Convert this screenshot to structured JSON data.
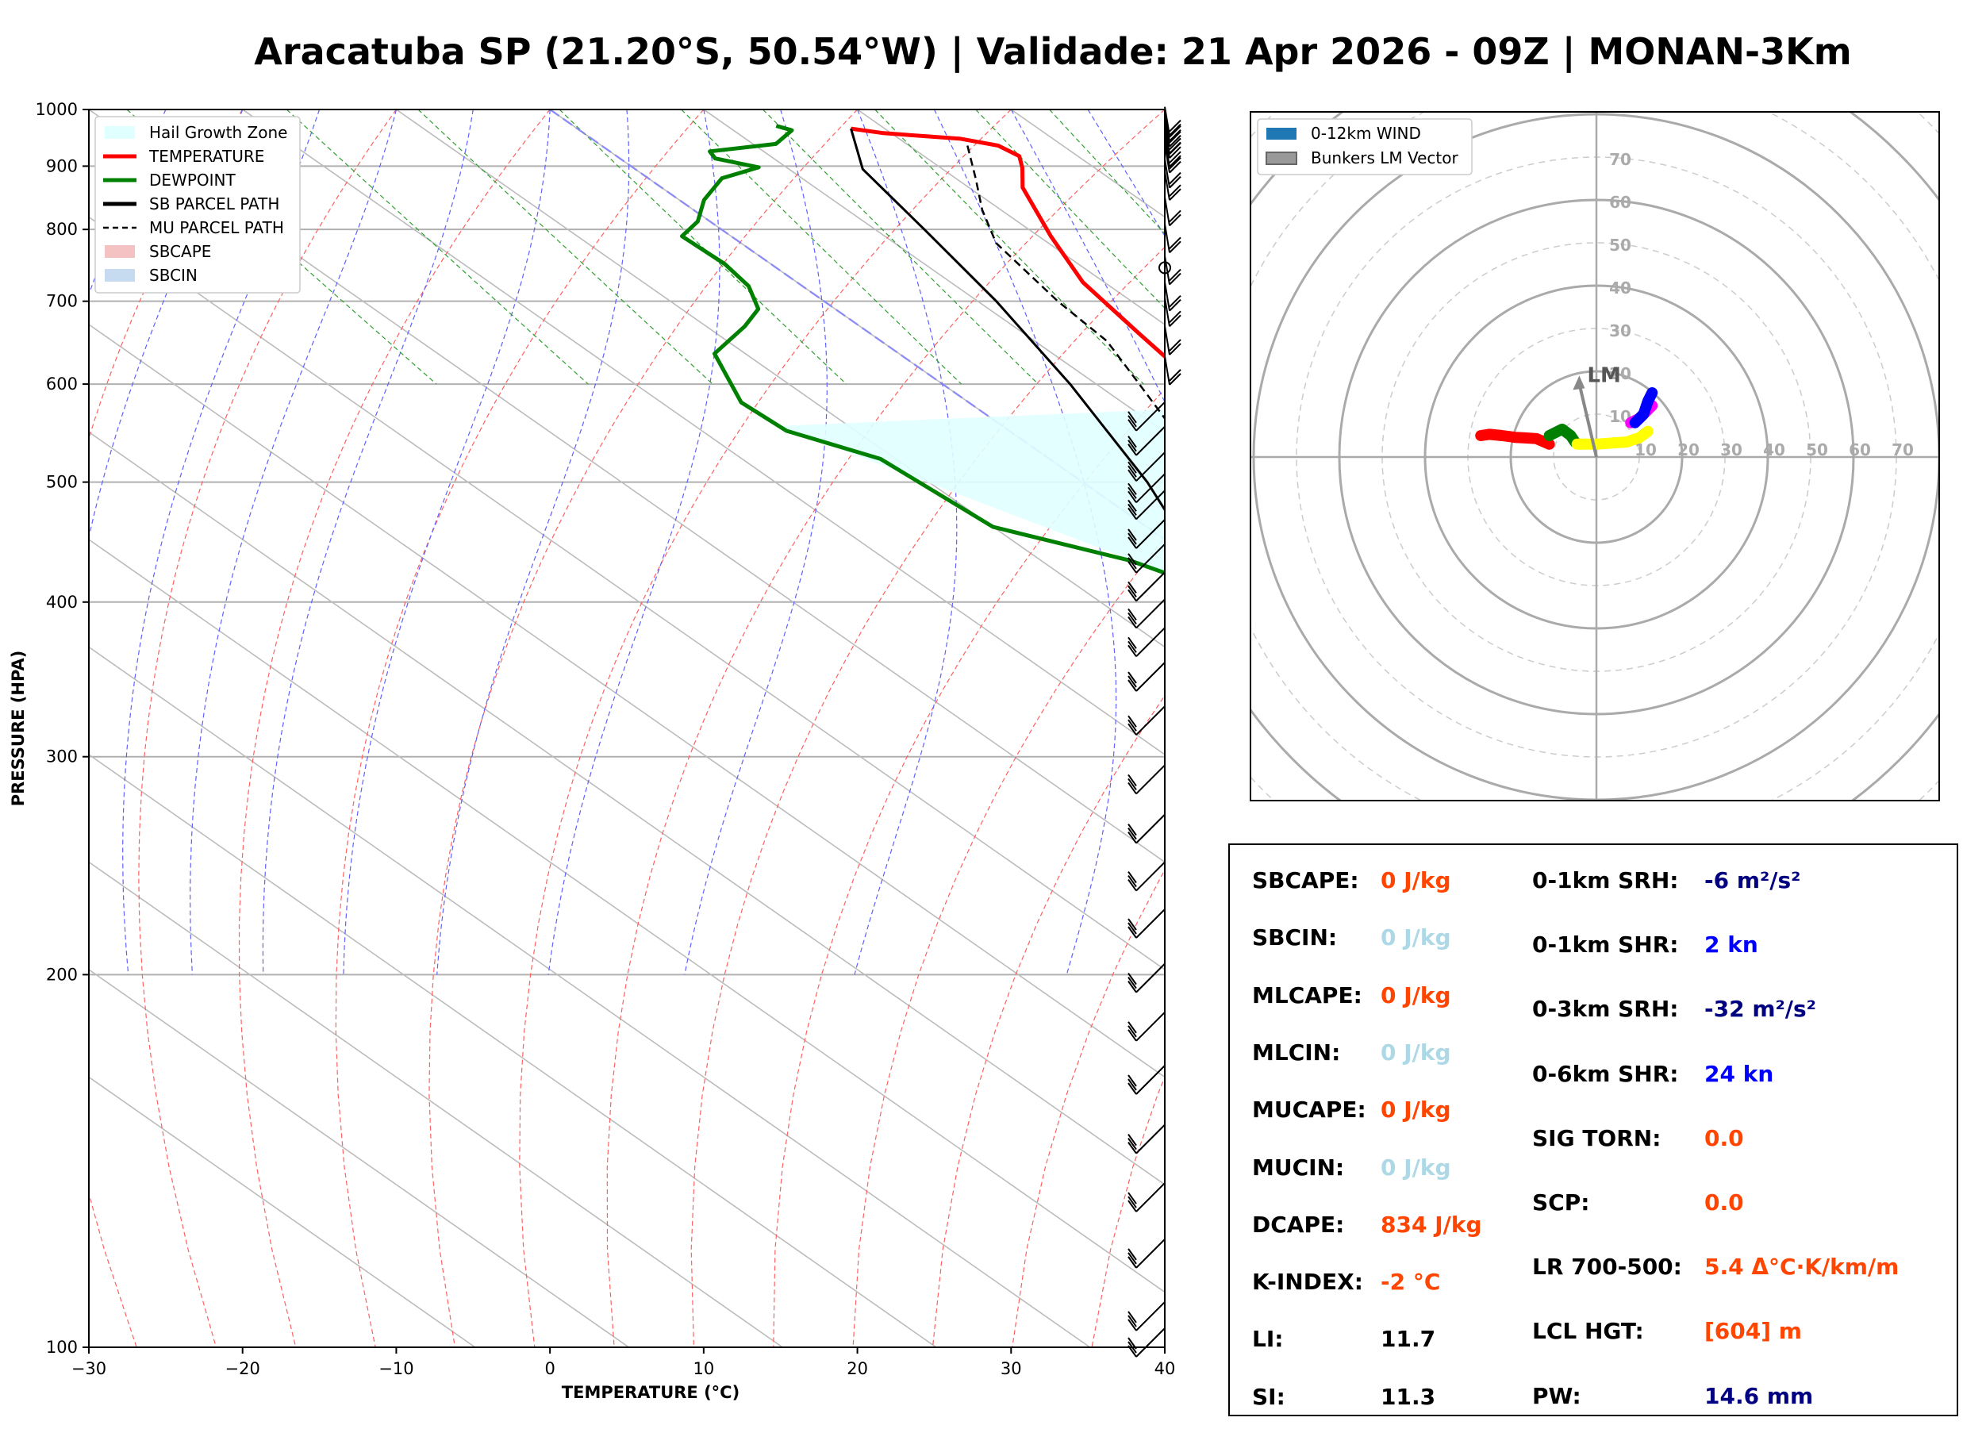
{
  "title": "Aracatuba SP (21.20°S, 50.54°W) | Validade: 21 Apr 2026 - 09Z | MONAN-3Km",
  "chart_data": [
    {
      "type": "line",
      "subtype": "skew-t log-p",
      "xlabel": "TEMPERATURE (°C)",
      "ylabel": "PRESSURE (HPA)",
      "xlim": [
        -30,
        40
      ],
      "ylim": [
        1000,
        100
      ],
      "y_scale": "log",
      "x_ticks": [
        -30,
        -20,
        -10,
        0,
        10,
        20,
        30,
        40
      ],
      "x_tick_labels": [
        "−30",
        "−20",
        "−10",
        "0",
        "10",
        "20",
        "30",
        "40"
      ],
      "y_ticks": [
        1000,
        900,
        800,
        700,
        600,
        500,
        400,
        300,
        200,
        100
      ],
      "y_tick_labels": [
        "1000",
        "900",
        "800",
        "700",
        "600",
        "500",
        "400",
        "300",
        "200",
        "100"
      ],
      "grid": true,
      "legend_position": "top-left",
      "legend": [
        {
          "label": "Hail Growth Zone",
          "color": "#e0ffff",
          "kind": "patch"
        },
        {
          "label": "TEMPERATURE",
          "color": "#ff0000",
          "kind": "line"
        },
        {
          "label": "DEWPOINT",
          "color": "#008000",
          "kind": "line"
        },
        {
          "label": "SB PARCEL PATH",
          "color": "#000000",
          "kind": "line"
        },
        {
          "label": "MU PARCEL PATH",
          "color": "#000000",
          "kind": "dashed"
        },
        {
          "label": "SBCAPE",
          "color": "#f4c2c2",
          "kind": "patch"
        },
        {
          "label": "SBCIN",
          "color": "#c6dbef",
          "kind": "patch"
        }
      ],
      "series": [
        {
          "name": "TEMPERATURE",
          "color": "#ff0000",
          "points": [
            [
              17.8,
              965
            ],
            [
              19.5,
              957
            ],
            [
              24,
              947
            ],
            [
              25.8,
              935
            ],
            [
              26.2,
              917
            ],
            [
              25.3,
              897
            ],
            [
              23.5,
              865
            ],
            [
              20.8,
              790
            ],
            [
              18.6,
              725
            ],
            [
              17.5,
              660
            ],
            [
              16.8,
              618
            ],
            [
              16.4,
              595
            ],
            [
              16.2,
              560
            ],
            [
              14.5,
              515
            ],
            [
              12.2,
              470
            ],
            [
              8.8,
              425
            ],
            [
              6.5,
              390
            ],
            [
              5.8,
              360
            ],
            [
              5.6,
              330
            ],
            [
              4.2,
              300
            ],
            [
              1.5,
              260
            ],
            [
              -1.8,
              225
            ],
            [
              -4.8,
              198
            ],
            [
              -7.4,
              180
            ],
            [
              -8,
              162
            ],
            [
              -6.5,
              142
            ],
            [
              -5.2,
              122
            ],
            [
              -2.8,
              100
            ]
          ]
        },
        {
          "name": "DEWPOINT",
          "color": "#008000",
          "points": [
            [
              13.2,
              970
            ],
            [
              13.8,
              962
            ],
            [
              11.5,
              938
            ],
            [
              6.5,
              925
            ],
            [
              6.2,
              913
            ],
            [
              8.2,
              898
            ],
            [
              4.8,
              880
            ],
            [
              1.6,
              845
            ],
            [
              -0.8,
              812
            ],
            [
              -3.2,
              790
            ],
            [
              -3,
              750
            ],
            [
              -3.5,
              720
            ],
            [
              -5,
              690
            ],
            [
              -7.5,
              668
            ],
            [
              -12,
              635
            ],
            [
              -14.8,
              580
            ],
            [
              -14.5,
              550
            ],
            [
              -11,
              522
            ],
            [
              -10,
              460
            ],
            [
              -4.2,
              432
            ],
            [
              -0.5,
              400
            ],
            [
              2.6,
              380
            ],
            [
              2.4,
              345
            ],
            [
              -0.5,
              315
            ],
            [
              -1.8,
              290
            ],
            [
              -6.6,
              255
            ],
            [
              -7.7,
              240
            ],
            [
              -11.9,
              220
            ],
            [
              -13.3,
              200
            ],
            [
              -15.9,
              175
            ],
            [
              -17.5,
              155
            ],
            [
              -15,
              120
            ],
            [
              -16.8,
              100
            ]
          ]
        },
        {
          "name": "SB PARCEL PATH",
          "color": "#000000",
          "points": [
            [
              17.8,
              965
            ],
            [
              14.8,
              895
            ],
            [
              13.2,
              800
            ],
            [
              11.2,
              700
            ],
            [
              8.3,
              600
            ],
            [
              4.2,
              500
            ],
            [
              -2,
              400
            ],
            [
              -9,
              300
            ],
            [
              -18.8,
              200
            ],
            [
              -24.5,
              150
            ],
            [
              -28.5,
              100
            ]
          ]
        },
        {
          "name": "MU PARCEL PATH",
          "color": "#000000",
          "dash": true,
          "points": [
            [
              23.8,
              935
            ],
            [
              21.3,
              880
            ],
            [
              18.8,
              830
            ],
            [
              16.6,
              780
            ],
            [
              15.2,
              700
            ],
            [
              14.7,
              650
            ],
            [
              12.8,
              600
            ],
            [
              9.6,
              525
            ],
            [
              6.5,
              460
            ],
            [
              2.2,
              400
            ],
            [
              -4.8,
              300
            ],
            [
              -14,
              200
            ],
            [
              -20.8,
              150
            ],
            [
              -27.5,
              100
            ]
          ]
        }
      ],
      "hail_growth_zone": {
        "color": "#e0ffff",
        "points": [
          [
            -14.5,
            555
          ],
          [
            -0.8,
            400
          ],
          [
            5.5,
            385
          ],
          [
            8.5,
            425
          ],
          [
            13.2,
            475
          ],
          [
            16.2,
            560
          ],
          [
            16.2,
            575
          ]
        ]
      },
      "wind_barbs_pressure": [
        970,
        960,
        950,
        938,
        930,
        915,
        905,
        880,
        860,
        820,
        780,
        735,
        700,
        680,
        645,
        610,
        560,
        535,
        510,
        490,
        475,
        450,
        430,
        408,
        388,
        368,
        345,
        318,
        285,
        260,
        238,
        218,
        197,
        180,
        163,
        146,
        131,
        118,
        105,
        100
      ]
    },
    {
      "type": "scatter",
      "subtype": "hodograph",
      "xlim": [
        -70,
        70
      ],
      "ylim": [
        -70,
        70
      ],
      "ring_labels": [
        "10",
        "20",
        "30",
        "40",
        "50",
        "60",
        "70"
      ],
      "legend_position": "top-left",
      "legend": [
        {
          "label": "0-12km WIND",
          "color": "#1f77b4"
        },
        {
          "label": "Bunkers LM Vector",
          "color": "#999999"
        }
      ],
      "lm_label": "LM",
      "lm_vector": [
        -4,
        19
      ],
      "series": [
        {
          "name": "",
          "color": "#ff0000",
          "points": [
            [
              -27,
              5
            ],
            [
              -25,
              5.3
            ],
            [
              -22,
              5
            ],
            [
              -19,
              4.6
            ],
            [
              -17,
              4.5
            ],
            [
              -14,
              4.3
            ],
            [
              -11,
              3
            ]
          ]
        },
        {
          "name": "",
          "color": "#008000",
          "points": [
            [
              -11,
              5
            ],
            [
              -8,
              6.5
            ],
            [
              -6,
              5
            ],
            [
              -5,
              3.5
            ]
          ]
        },
        {
          "name": "",
          "color": "#ffff00",
          "points": [
            [
              -4.5,
              3
            ],
            [
              0,
              3
            ],
            [
              4,
              3.3
            ],
            [
              7,
              3.5
            ],
            [
              10,
              4.5
            ],
            [
              12,
              6
            ]
          ]
        },
        {
          "name": "",
          "color": "#ff00ff",
          "points": [
            [
              8,
              8
            ],
            [
              10,
              9
            ],
            [
              11,
              10
            ],
            [
              13,
              12
            ]
          ]
        },
        {
          "name": "",
          "color": "#0000ff",
          "points": [
            [
              9,
              8
            ],
            [
              11,
              10
            ],
            [
              12,
              13
            ],
            [
              13,
              15
            ]
          ]
        }
      ]
    }
  ],
  "indices": [
    {
      "label": "SBCAPE:",
      "value": "0 J/kg",
      "color": "#ff4500"
    },
    {
      "label": "SBCIN:",
      "value": "0 J/kg",
      "color": "#add8e6"
    },
    {
      "label": "MLCAPE:",
      "value": "0 J/kg",
      "color": "#ff4500"
    },
    {
      "label": "MLCIN:",
      "value": "0 J/kg",
      "color": "#add8e6"
    },
    {
      "label": "MUCAPE:",
      "value": "0 J/kg",
      "color": "#ff4500"
    },
    {
      "label": "MUCIN:",
      "value": "0 J/kg",
      "color": "#add8e6"
    },
    {
      "label": "DCAPE:",
      "value": "834 J/kg",
      "color": "#ff4500"
    },
    {
      "label": "K-INDEX:",
      "value": "-2 °C",
      "color": "#ff4500"
    },
    {
      "label": "LI:",
      "value": "11.7",
      "color": "#000000"
    },
    {
      "label": "SI:",
      "value": "11.3",
      "color": "#000000"
    },
    {
      "label": "0-1km SRH:",
      "value": "-6 m²/s²",
      "color": "#000080"
    },
    {
      "label": "0-1km SHR:",
      "value": "2 kn",
      "color": "#0000ff"
    },
    {
      "label": "0-3km SRH:",
      "value": "-32 m²/s²",
      "color": "#000080"
    },
    {
      "label": "0-6km SHR:",
      "value": "24 kn",
      "color": "#0000ff"
    },
    {
      "label": "SIG TORN:",
      "value": "0.0",
      "color": "#ff4500"
    },
    {
      "label": "SCP:",
      "value": "0.0",
      "color": "#ff4500"
    },
    {
      "label": "LR 700-500:",
      "value": "5.4 Δ°C·K/km/m",
      "color": "#ff4500"
    },
    {
      "label": "LCL HGT:",
      "value": "[604] m",
      "color": "#ff4500"
    },
    {
      "label": "PW:",
      "value": "14.6 mm",
      "color": "#000080"
    }
  ]
}
